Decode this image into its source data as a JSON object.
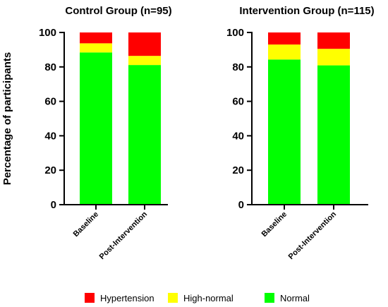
{
  "chart_data": [
    {
      "type": "bar",
      "stacked": true,
      "title": "Control Group (n=95)",
      "ylabel": "Percentage of participants",
      "categories": [
        "Baseline",
        "Post-Intervention"
      ],
      "ylim": [
        0,
        100
      ],
      "yticks": [
        0,
        20,
        40,
        60,
        80,
        100
      ],
      "series": [
        {
          "name": "Normal",
          "color": "#00ff00",
          "values": [
            88.4,
            81.1
          ]
        },
        {
          "name": "High-normal",
          "color": "#ffff00",
          "values": [
            5.3,
            5.3
          ]
        },
        {
          "name": "Hypertension",
          "color": "#ff0000",
          "values": [
            6.3,
            13.6
          ]
        }
      ]
    },
    {
      "type": "bar",
      "stacked": true,
      "title": "Intervention Group (n=115)",
      "categories": [
        "Baseline",
        "Post-Intervention"
      ],
      "ylim": [
        0,
        100
      ],
      "yticks": [
        0,
        20,
        40,
        60,
        80,
        100
      ],
      "series": [
        {
          "name": "Normal",
          "color": "#00ff00",
          "values": [
            84.3,
            80.9
          ]
        },
        {
          "name": "High-normal",
          "color": "#ffff00",
          "values": [
            8.7,
            9.6
          ]
        },
        {
          "name": "Hypertension",
          "color": "#ff0000",
          "values": [
            7.0,
            9.5
          ]
        }
      ]
    }
  ],
  "legend": {
    "items": [
      {
        "label": "Hypertension",
        "color": "#ff0000"
      },
      {
        "label": "High-normal",
        "color": "#ffff00"
      },
      {
        "label": "Normal",
        "color": "#00ff00"
      }
    ]
  }
}
